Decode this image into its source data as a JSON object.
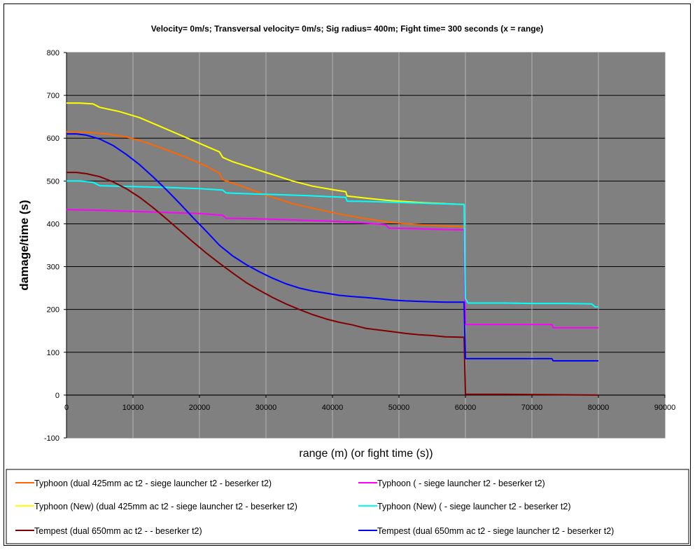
{
  "chart_data": {
    "type": "line",
    "title": "Velocity= 0m/s; Transversal velocity= 0m/s; Sig radius= 400m; Fight time= 300 seconds (x = range)",
    "xlabel": "range (m) (or fight time (s))",
    "ylabel": "damage/time (s)",
    "xlim": [
      0,
      90000
    ],
    "ylim": [
      -100,
      800
    ],
    "xticks": [
      "0",
      "10000",
      "20000",
      "30000",
      "40000",
      "50000",
      "60000",
      "70000",
      "80000",
      "90000"
    ],
    "yticks": [
      "-100",
      "0",
      "100",
      "200",
      "300",
      "400",
      "500",
      "600",
      "700",
      "800"
    ],
    "grid": "horizontal and vertical",
    "plot_background": "#808080",
    "legend_position": "bottom",
    "series": [
      {
        "name": "Typhoon (dual 425mm ac t2 - siege launcher t2 - beserker t2)",
        "color": "#FF6600",
        "x": [
          0,
          3000,
          6000,
          9000,
          12000,
          15000,
          18000,
          21000,
          23000,
          23500,
          26000,
          30000,
          34000,
          38000,
          42000,
          45000,
          48000,
          51000,
          54000,
          57000,
          59800,
          60000
        ],
        "y": [
          615,
          614,
          610,
          603,
          590,
          573,
          555,
          535,
          518,
          503,
          490,
          467,
          447,
          433,
          420,
          412,
          405,
          400,
          397,
          395,
          393,
          393
        ]
      },
      {
        "name": "Typhoon ( - siege launcher t2 - beserker t2)",
        "color": "#FF00FF",
        "x": [
          0,
          4000,
          8000,
          12000,
          16000,
          20000,
          23500,
          24000,
          28000,
          32000,
          36000,
          40000,
          44000,
          48000,
          48500,
          52000,
          56000,
          59800,
          59900,
          60000,
          62000,
          66000,
          70000,
          73000,
          73200,
          76000,
          80000
        ],
        "y": [
          433,
          432,
          430,
          428,
          426,
          424,
          420,
          413,
          412,
          410,
          408,
          406,
          403,
          398,
          390,
          389,
          387,
          386,
          250,
          165,
          165,
          165,
          165,
          165,
          157,
          157,
          157
        ]
      },
      {
        "name": "Typhoon (New) (dual 425mm ac t2 - siege launcher t2 - beserker t2)",
        "color": "#FFFF00",
        "x": [
          0,
          2000,
          4000,
          5000,
          8000,
          11000,
          14000,
          17000,
          20000,
          23000,
          23500,
          25000,
          28000,
          31000,
          34000,
          37000,
          40000,
          42000,
          42200,
          45000,
          48000,
          51000,
          54000,
          57000,
          59800
        ],
        "y": [
          682,
          682,
          680,
          672,
          662,
          648,
          628,
          608,
          588,
          568,
          555,
          545,
          530,
          515,
          500,
          488,
          480,
          475,
          465,
          460,
          455,
          452,
          449,
          447,
          445
        ]
      },
      {
        "name": "Typhoon (New) ( - siege launcher t2 - beserker t2)",
        "color": "#00FFFF",
        "x": [
          0,
          2000,
          4000,
          5000,
          10000,
          15000,
          20000,
          23500,
          24000,
          28000,
          32000,
          36000,
          40000,
          42000,
          42200,
          46000,
          50000,
          54000,
          58000,
          59800,
          59900,
          60000,
          60400,
          63000,
          66000,
          70000,
          75000,
          79000,
          79500,
          80000
        ],
        "y": [
          500,
          500,
          497,
          489,
          487,
          485,
          482,
          479,
          472,
          470,
          468,
          466,
          463,
          462,
          453,
          452,
          450,
          448,
          446,
          445,
          330,
          225,
          215,
          215,
          215,
          214,
          214,
          213,
          206,
          206
        ]
      },
      {
        "name": "Tempest (dual 650mm ac t2 -  - beserker t2)",
        "color": "#800000",
        "x": [
          0,
          1500,
          3000,
          5000,
          7000,
          9000,
          11000,
          13000,
          15000,
          17000,
          19000,
          21000,
          23000,
          25000,
          27000,
          29000,
          31000,
          33000,
          35000,
          37000,
          39000,
          41000,
          43000,
          45000,
          47000,
          49000,
          51000,
          53000,
          55000,
          57000,
          59800,
          59900,
          60000,
          62000,
          65000,
          80000
        ],
        "y": [
          520,
          520,
          517,
          510,
          498,
          482,
          462,
          438,
          412,
          385,
          358,
          332,
          308,
          285,
          263,
          245,
          228,
          213,
          200,
          188,
          178,
          170,
          164,
          156,
          152,
          148,
          144,
          141,
          139,
          136,
          135,
          70,
          2,
          2,
          2,
          0
        ]
      },
      {
        "name": "Tempest (dual 650mm ac t2 - siege launcher t2 - beserker t2)",
        "color": "#0000FF",
        "x": [
          0,
          1500,
          3000,
          5000,
          7000,
          9000,
          11000,
          13000,
          15000,
          17000,
          19000,
          21000,
          23000,
          25000,
          27000,
          29000,
          31000,
          33000,
          35000,
          37000,
          39000,
          41000,
          43000,
          45000,
          47000,
          49000,
          51000,
          53000,
          55000,
          57000,
          59800,
          59900,
          60000,
          62000,
          66000,
          70000,
          73000,
          73200,
          76000,
          80000
        ],
        "y": [
          610,
          610,
          607,
          598,
          583,
          562,
          538,
          510,
          480,
          448,
          415,
          383,
          350,
          325,
          305,
          288,
          273,
          260,
          250,
          243,
          238,
          233,
          230,
          228,
          225,
          222,
          220,
          219,
          218,
          217,
          217,
          150,
          85,
          85,
          85,
          85,
          85,
          80,
          80,
          80
        ]
      }
    ]
  }
}
